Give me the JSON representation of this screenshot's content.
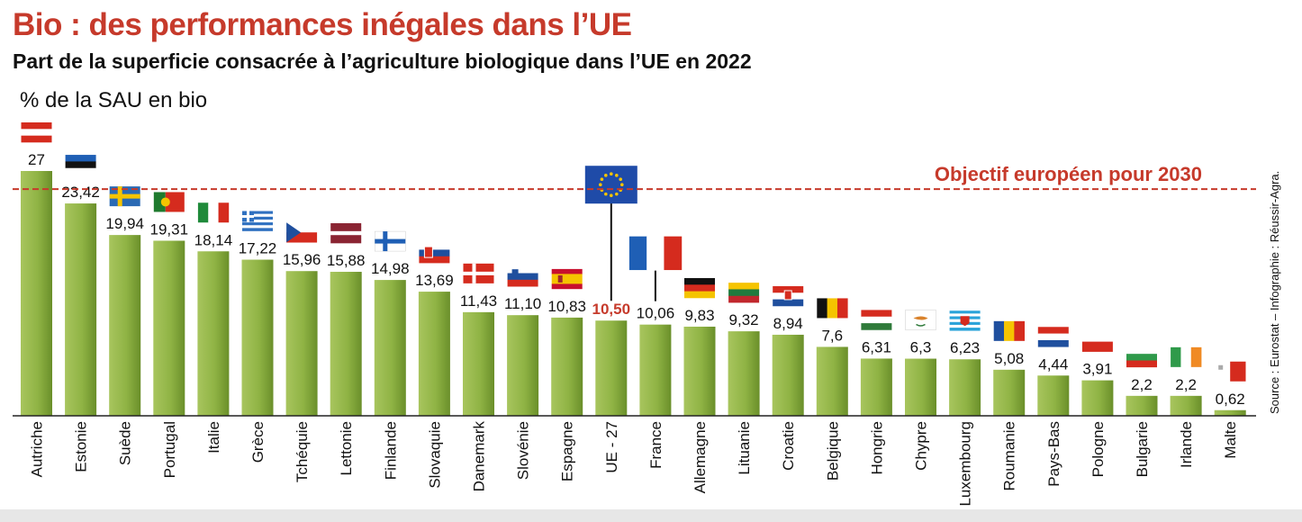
{
  "header": {
    "title": "Bio : des performances inégales dans l’UE",
    "subtitle": "Part de la superficie consacrée à l’agriculture biologique dans l’UE en 2022",
    "unit_label": "% de la SAU en bio",
    "source": "Source : Eurostat – Infographie : Réussir-Agra."
  },
  "colors": {
    "bar_light": "#a8c55e",
    "bar_dark": "#6a8f2a",
    "accent": "#c63a2b",
    "text": "#111111"
  },
  "chart_data": {
    "type": "bar",
    "title": "Part de la superficie consacrée à l’agriculture biologique dans l’UE en 2022",
    "ylabel": "% de la SAU en bio",
    "ylim": [
      0,
      27.6
    ],
    "grid": false,
    "categories": [
      "Autriche",
      "Estonie",
      "Suède",
      "Portugal",
      "Italie",
      "Grèce",
      "Tchéquie",
      "Lettonie",
      "Finlande",
      "Slovaquie",
      "Danemark",
      "Slovénie",
      "Espagne",
      "UE - 27",
      "France",
      "Allemagne",
      "Lituanie",
      "Croatie",
      "Belgique",
      "Hongrie",
      "Chypre",
      "Luxembourg",
      "Roumanie",
      "Pays-Bas",
      "Pologne",
      "Bulgarie",
      "Irlande",
      "Malte"
    ],
    "values": [
      27,
      23.42,
      19.94,
      19.31,
      18.14,
      17.22,
      15.96,
      15.88,
      14.98,
      13.69,
      11.43,
      11.1,
      10.83,
      10.5,
      10.06,
      9.83,
      9.32,
      8.94,
      7.6,
      6.31,
      6.3,
      6.23,
      5.08,
      4.44,
      3.91,
      2.2,
      2.2,
      0.62
    ],
    "value_labels": [
      "27",
      "23,42",
      "19,94",
      "19,31",
      "18,14",
      "17,22",
      "15,96",
      "15,88",
      "14,98",
      "13,69",
      "11,43",
      "11,10",
      "10,83",
      "10,50",
      "10,06",
      "9,83",
      "9,32",
      "8,94",
      "7,6",
      "6,31",
      "6,3",
      "6,23",
      "5,08",
      "4,44",
      "3,91",
      "2,2",
      "2,2",
      "0,62"
    ],
    "highlight_index": 13,
    "target": {
      "value": 25,
      "label": "Objectif européen pour 2030"
    }
  }
}
